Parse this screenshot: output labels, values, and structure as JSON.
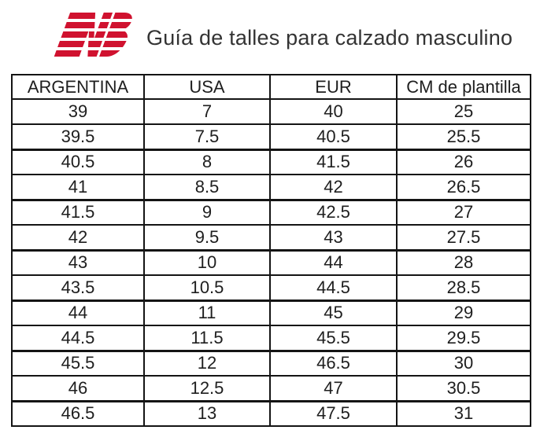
{
  "brand": {
    "name": "New Balance",
    "logo_color": "#d0122f"
  },
  "header": {
    "title": "Guía de talles para calzado masculino"
  },
  "table": {
    "headers": [
      "ARGENTINA",
      "USA",
      "EUR",
      "CM de plantilla"
    ],
    "rows": [
      [
        "39",
        "7",
        "40",
        "25"
      ],
      [
        "39.5",
        "7.5",
        "40.5",
        "25.5"
      ],
      [
        "40.5",
        "8",
        "41.5",
        "26"
      ],
      [
        "41",
        "8.5",
        "42",
        "26.5"
      ],
      [
        "41.5",
        "9",
        "42.5",
        "27"
      ],
      [
        "42",
        "9.5",
        "43",
        "27.5"
      ],
      [
        "43",
        "10",
        "44",
        "28"
      ],
      [
        "43.5",
        "10.5",
        "44.5",
        "28.5"
      ],
      [
        "44",
        "11",
        "45",
        "29"
      ],
      [
        "44.5",
        "11.5",
        "45.5",
        "29.5"
      ],
      [
        "45.5",
        "12",
        "46.5",
        "30"
      ],
      [
        "46",
        "12.5",
        "47",
        "30.5"
      ],
      [
        "46.5",
        "13",
        "47.5",
        "31"
      ]
    ]
  },
  "chart_data": {
    "type": "table",
    "title": "Guía de talles para calzado masculino",
    "columns": [
      "ARGENTINA",
      "USA",
      "EUR",
      "CM de plantilla"
    ],
    "rows": [
      [
        39,
        7,
        40,
        25
      ],
      [
        39.5,
        7.5,
        40.5,
        25.5
      ],
      [
        40.5,
        8,
        41.5,
        26
      ],
      [
        41,
        8.5,
        42,
        26.5
      ],
      [
        41.5,
        9,
        42.5,
        27
      ],
      [
        42,
        9.5,
        43,
        27.5
      ],
      [
        43,
        10,
        44,
        28
      ],
      [
        43.5,
        10.5,
        44.5,
        28.5
      ],
      [
        44,
        11,
        45,
        29
      ],
      [
        44.5,
        11.5,
        45.5,
        29.5
      ],
      [
        45.5,
        12,
        46.5,
        30
      ],
      [
        46,
        12.5,
        47,
        30.5
      ],
      [
        46.5,
        13,
        47.5,
        31
      ]
    ]
  },
  "colors": {
    "accent": "#d0122f",
    "text": "#1e1e1e",
    "border": "#141414"
  }
}
